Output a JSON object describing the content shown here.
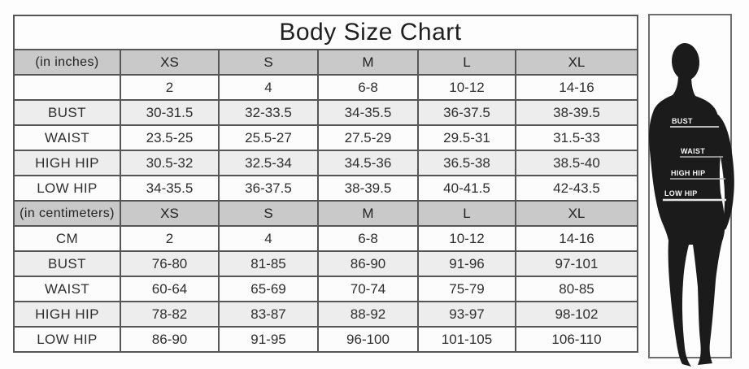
{
  "chart_data": {
    "type": "table",
    "title": "Body Size Chart",
    "sections": [
      {
        "unit_label": "(in inches)",
        "columns": [
          "(in inches)",
          "XS",
          "S",
          "M",
          "L",
          "XL"
        ],
        "rows": [
          [
            "",
            "2",
            "4",
            "6-8",
            "10-12",
            "14-16"
          ],
          [
            "BUST",
            "30-31.5",
            "32-33.5",
            "34-35.5",
            "36-37.5",
            "38-39.5"
          ],
          [
            "WAIST",
            "23.5-25",
            "25.5-27",
            "27.5-29",
            "29.5-31",
            "31.5-33"
          ],
          [
            "HIGH HIP",
            "30.5-32",
            "32.5-34",
            "34.5-36",
            "36.5-38",
            "38.5-40"
          ],
          [
            "LOW HIP",
            "34-35.5",
            "36-37.5",
            "38-39.5",
            "40-41.5",
            "42-43.5"
          ]
        ]
      },
      {
        "unit_label": "(in centimeters)",
        "columns": [
          "(in centimeters)",
          "XS",
          "S",
          "M",
          "L",
          "XL"
        ],
        "rows": [
          [
            "CM",
            "2",
            "4",
            "6-8",
            "10-12",
            "14-16"
          ],
          [
            "BUST",
            "76-80",
            "81-85",
            "86-90",
            "91-96",
            "97-101"
          ],
          [
            "WAIST",
            "60-64",
            "65-69",
            "70-74",
            "75-79",
            "80-85"
          ],
          [
            "HIGH HIP",
            "78-82",
            "83-87",
            "88-92",
            "93-97",
            "98-102"
          ],
          [
            "LOW HIP",
            "86-90",
            "91-95",
            "96-100",
            "101-105",
            "106-110"
          ]
        ]
      }
    ],
    "layout_hints": {
      "header_rows_shaded": true,
      "alternating_rows": [
        "BUST",
        "HIGH HIP"
      ],
      "figure": "female-silhouette-right"
    }
  },
  "figure": {
    "labels": [
      {
        "text": "BUST"
      },
      {
        "text": "WAIST"
      },
      {
        "text": "HIGH HIP"
      },
      {
        "text": "LOW HIP"
      }
    ]
  },
  "colors": {
    "header_bg": "#c9c9c9",
    "row_bg": "#fcfcfc",
    "row_alt_bg": "#ededed",
    "grid_border": "#565656",
    "figure_box_border": "#6e6e6e",
    "silhouette": "#1b1b1b",
    "label_text": "#f7f7f7",
    "measure_line": "#b9b9b9"
  }
}
